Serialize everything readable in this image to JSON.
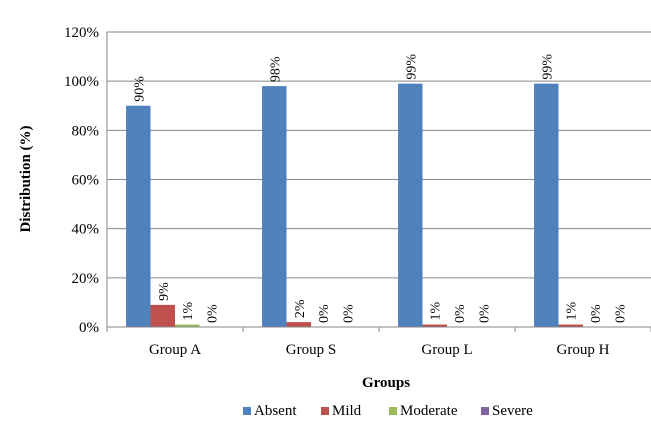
{
  "chart_data": {
    "type": "bar",
    "title": "",
    "xlabel": "Groups",
    "ylabel": "Distribution (%)",
    "ylim": [
      0,
      120
    ],
    "y_ticks": [
      0,
      20,
      40,
      60,
      80,
      100,
      120
    ],
    "y_tick_suffix": "%",
    "grid": true,
    "legend_position": "bottom",
    "categories": [
      "Group A",
      "Group S",
      "Group L",
      "Group H"
    ],
    "series": [
      {
        "name": "Absent",
        "color": "#4F81BD",
        "values": [
          90,
          98,
          99,
          99
        ],
        "labels": [
          "90%",
          "98%",
          "99%",
          "99%"
        ]
      },
      {
        "name": "Mild",
        "color": "#C0504D",
        "values": [
          9,
          2,
          1,
          1
        ],
        "labels": [
          "9%",
          "2%",
          "1%",
          "1%"
        ]
      },
      {
        "name": "Moderate",
        "color": "#9BBB59",
        "values": [
          1,
          0,
          0,
          0
        ],
        "labels": [
          "1%",
          "0%",
          "0%",
          "0%"
        ]
      },
      {
        "name": "Severe",
        "color": "#8064A2",
        "values": [
          0,
          0,
          0,
          0
        ],
        "labels": [
          "0%",
          "0%",
          "0%",
          "0%"
        ]
      }
    ]
  }
}
